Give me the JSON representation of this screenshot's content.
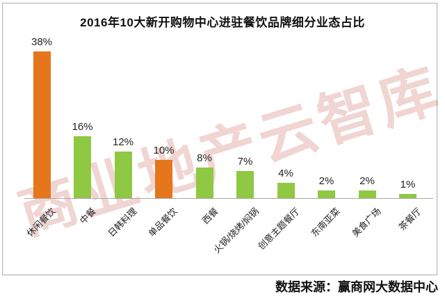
{
  "title": "2016年10大新开购物中心进驻餐饮品牌细分业态占比",
  "watermark": "商业地产云智库",
  "source_note": "数据来源：赢商网大数据中心",
  "colors": {
    "orange": "#e5761c",
    "green": "#8fc843",
    "axis": "#a8a8a8",
    "border": "#aaaaaa",
    "watermark": "rgba(201,94,83,0.26)",
    "label_text": "#1f1f1f"
  },
  "chart_data": {
    "type": "bar",
    "title": "2016年10大新开购物中心进驻餐饮品牌细分业态占比",
    "categories": [
      "休闲餐饮",
      "中餐",
      "日韩料理",
      "单品餐饮",
      "西餐",
      "火锅/烧烤/焖锅",
      "创意主题餐厅",
      "东南亚菜",
      "美食广场",
      "茶餐厅"
    ],
    "values": [
      38,
      16,
      12,
      10,
      8,
      7,
      4,
      2,
      2,
      1
    ],
    "data_labels": [
      "38%",
      "16%",
      "12%",
      "10%",
      "8%",
      "7%",
      "4%",
      "2%",
      "2%",
      "1%"
    ],
    "bar_colors": [
      "#e5761c",
      "#8fc843",
      "#8fc843",
      "#e5761c",
      "#8fc843",
      "#8fc843",
      "#8fc843",
      "#8fc843",
      "#8fc843",
      "#8fc843"
    ],
    "unit": "%",
    "ylim": [
      0,
      40
    ],
    "grid": false,
    "legend": false,
    "xlabel": "",
    "ylabel": "",
    "source": "数据来源：赢商网大数据中心"
  }
}
